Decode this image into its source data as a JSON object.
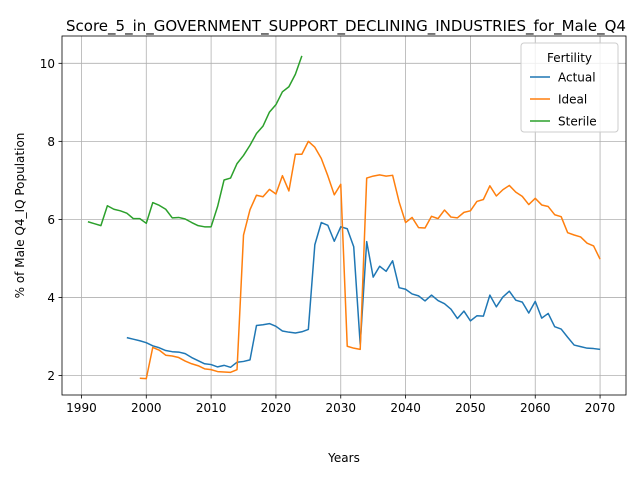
{
  "chart_data": {
    "type": "line",
    "title": "Score_5_in_GOVERNMENT_SUPPORT_DECLINING_INDUSTRIES_for_Male_Q4",
    "xlabel": "Years",
    "ylabel": "% of Male Q4_IQ Population",
    "xlim": [
      1987,
      2074
    ],
    "ylim": [
      1.5,
      10.7
    ],
    "xticks": [
      1990,
      2000,
      2010,
      2020,
      2030,
      2040,
      2050,
      2060,
      2070
    ],
    "yticks": [
      2,
      4,
      6,
      8,
      10
    ],
    "grid": true,
    "legend": {
      "title": "Fertility",
      "position": "top-right"
    },
    "series": [
      {
        "name": "Actual",
        "color": "#1f77b4",
        "points": [
          [
            1997,
            2.97
          ],
          [
            1998,
            2.93
          ],
          [
            1999,
            2.89
          ],
          [
            2000,
            2.84
          ],
          [
            2001,
            2.76
          ],
          [
            2002,
            2.71
          ],
          [
            2003,
            2.64
          ],
          [
            2004,
            2.61
          ],
          [
            2005,
            2.6
          ],
          [
            2006,
            2.56
          ],
          [
            2007,
            2.46
          ],
          [
            2008,
            2.38
          ],
          [
            2009,
            2.3
          ],
          [
            2010,
            2.28
          ],
          [
            2011,
            2.22
          ],
          [
            2012,
            2.26
          ],
          [
            2013,
            2.21
          ],
          [
            2014,
            2.34
          ],
          [
            2015,
            2.36
          ],
          [
            2016,
            2.4
          ],
          [
            2017,
            3.28
          ],
          [
            2018,
            3.3
          ],
          [
            2019,
            3.33
          ],
          [
            2020,
            3.26
          ],
          [
            2021,
            3.14
          ],
          [
            2022,
            3.11
          ],
          [
            2023,
            3.09
          ],
          [
            2024,
            3.12
          ],
          [
            2025,
            3.18
          ],
          [
            2026,
            5.35
          ],
          [
            2027,
            5.92
          ],
          [
            2028,
            5.85
          ],
          [
            2029,
            5.44
          ],
          [
            2030,
            5.81
          ],
          [
            2031,
            5.76
          ],
          [
            2032,
            5.3
          ],
          [
            2033,
            2.8
          ],
          [
            2034,
            5.43
          ],
          [
            2035,
            4.52
          ],
          [
            2036,
            4.8
          ],
          [
            2037,
            4.67
          ],
          [
            2038,
            4.94
          ],
          [
            2039,
            4.25
          ],
          [
            2040,
            4.21
          ],
          [
            2041,
            4.09
          ],
          [
            2042,
            4.04
          ],
          [
            2043,
            3.91
          ],
          [
            2044,
            4.06
          ],
          [
            2045,
            3.92
          ],
          [
            2046,
            3.84
          ],
          [
            2047,
            3.7
          ],
          [
            2048,
            3.46
          ],
          [
            2049,
            3.65
          ],
          [
            2050,
            3.4
          ],
          [
            2051,
            3.53
          ],
          [
            2052,
            3.52
          ],
          [
            2053,
            4.06
          ],
          [
            2054,
            3.76
          ],
          [
            2055,
            4.01
          ],
          [
            2056,
            4.16
          ],
          [
            2057,
            3.93
          ],
          [
            2058,
            3.88
          ],
          [
            2059,
            3.6
          ],
          [
            2060,
            3.9
          ],
          [
            2061,
            3.47
          ],
          [
            2062,
            3.59
          ],
          [
            2063,
            3.25
          ],
          [
            2064,
            3.19
          ],
          [
            2065,
            2.98
          ],
          [
            2066,
            2.78
          ],
          [
            2067,
            2.74
          ],
          [
            2068,
            2.7
          ],
          [
            2069,
            2.69
          ],
          [
            2070,
            2.67
          ]
        ]
      },
      {
        "name": "Ideal",
        "color": "#ff7f0e",
        "points": [
          [
            1999,
            1.93
          ],
          [
            2000,
            1.92
          ],
          [
            2001,
            2.72
          ],
          [
            2002,
            2.65
          ],
          [
            2003,
            2.52
          ],
          [
            2004,
            2.5
          ],
          [
            2005,
            2.46
          ],
          [
            2006,
            2.37
          ],
          [
            2007,
            2.3
          ],
          [
            2008,
            2.25
          ],
          [
            2009,
            2.17
          ],
          [
            2010,
            2.15
          ],
          [
            2011,
            2.1
          ],
          [
            2012,
            2.09
          ],
          [
            2013,
            2.08
          ],
          [
            2014,
            2.15
          ],
          [
            2015,
            5.6
          ],
          [
            2016,
            6.25
          ],
          [
            2017,
            6.62
          ],
          [
            2018,
            6.58
          ],
          [
            2019,
            6.77
          ],
          [
            2020,
            6.65
          ],
          [
            2021,
            7.12
          ],
          [
            2022,
            6.73
          ],
          [
            2023,
            7.67
          ],
          [
            2024,
            7.67
          ],
          [
            2025,
            8.0
          ],
          [
            2026,
            7.85
          ],
          [
            2027,
            7.56
          ],
          [
            2028,
            7.12
          ],
          [
            2029,
            6.63
          ],
          [
            2030,
            6.9
          ],
          [
            2031,
            2.75
          ],
          [
            2032,
            2.7
          ],
          [
            2033,
            2.67
          ],
          [
            2034,
            7.06
          ],
          [
            2035,
            7.11
          ],
          [
            2036,
            7.14
          ],
          [
            2037,
            7.11
          ],
          [
            2038,
            7.13
          ],
          [
            2039,
            6.45
          ],
          [
            2040,
            5.92
          ],
          [
            2041,
            6.05
          ],
          [
            2042,
            5.79
          ],
          [
            2043,
            5.78
          ],
          [
            2044,
            6.08
          ],
          [
            2045,
            6.02
          ],
          [
            2046,
            6.24
          ],
          [
            2047,
            6.06
          ],
          [
            2048,
            6.04
          ],
          [
            2049,
            6.18
          ],
          [
            2050,
            6.22
          ],
          [
            2051,
            6.46
          ],
          [
            2052,
            6.51
          ],
          [
            2053,
            6.86
          ],
          [
            2054,
            6.6
          ],
          [
            2055,
            6.76
          ],
          [
            2056,
            6.87
          ],
          [
            2057,
            6.7
          ],
          [
            2058,
            6.59
          ],
          [
            2059,
            6.38
          ],
          [
            2060,
            6.54
          ],
          [
            2061,
            6.37
          ],
          [
            2062,
            6.33
          ],
          [
            2063,
            6.12
          ],
          [
            2064,
            6.07
          ],
          [
            2065,
            5.66
          ],
          [
            2066,
            5.6
          ],
          [
            2067,
            5.55
          ],
          [
            2068,
            5.39
          ],
          [
            2069,
            5.32
          ],
          [
            2070,
            4.98
          ]
        ]
      },
      {
        "name": "Sterile",
        "color": "#2ca02c",
        "points": [
          [
            1991,
            5.94
          ],
          [
            1992,
            5.89
          ],
          [
            1993,
            5.84
          ],
          [
            1994,
            6.35
          ],
          [
            1995,
            6.26
          ],
          [
            1996,
            6.22
          ],
          [
            1997,
            6.16
          ],
          [
            1998,
            6.02
          ],
          [
            1999,
            6.02
          ],
          [
            2000,
            5.9
          ],
          [
            2001,
            6.43
          ],
          [
            2002,
            6.36
          ],
          [
            2003,
            6.26
          ],
          [
            2004,
            6.04
          ],
          [
            2005,
            6.05
          ],
          [
            2006,
            6.01
          ],
          [
            2007,
            5.92
          ],
          [
            2008,
            5.84
          ],
          [
            2009,
            5.81
          ],
          [
            2010,
            5.81
          ],
          [
            2011,
            6.33
          ],
          [
            2012,
            7.01
          ],
          [
            2013,
            7.06
          ],
          [
            2014,
            7.43
          ],
          [
            2015,
            7.64
          ],
          [
            2016,
            7.9
          ],
          [
            2017,
            8.2
          ],
          [
            2018,
            8.39
          ],
          [
            2019,
            8.75
          ],
          [
            2020,
            8.94
          ],
          [
            2021,
            9.27
          ],
          [
            2022,
            9.4
          ],
          [
            2023,
            9.72
          ],
          [
            2024,
            10.19
          ]
        ]
      }
    ]
  }
}
